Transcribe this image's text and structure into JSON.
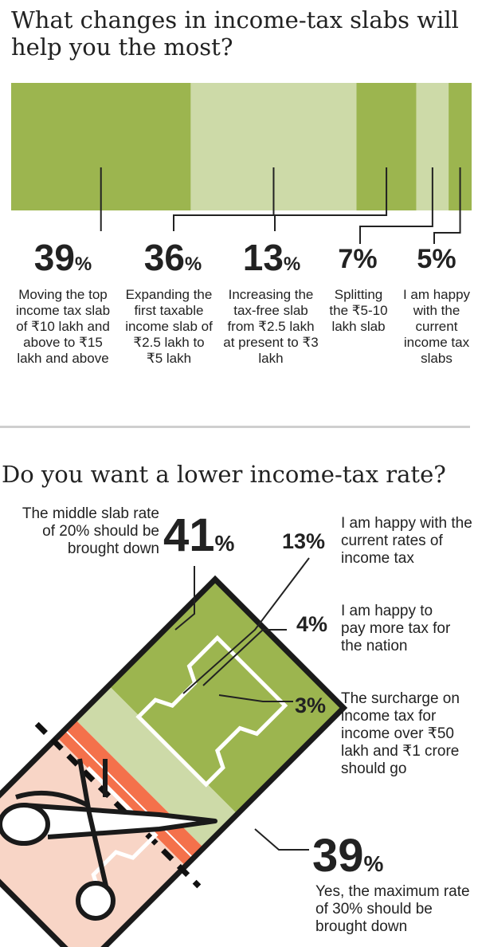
{
  "chart_data": [
    {
      "type": "bar",
      "title": "What changes in income-tax slabs will help you the most?",
      "categories": [
        "Moving the top income tax slab of ₹10 lakh and above to ₹15 lakh and above",
        "Expanding the first taxable income slab of ₹2.5 lakh to ₹5 lakh",
        "Increasing the tax-free slab from ₹2.5 lakh at present to ₹3 lakh",
        "Splitting the ₹5-10 lakh slab",
        "I am happy with the current income tax slabs"
      ],
      "values": [
        39,
        36,
        13,
        7,
        5
      ],
      "labels": [
        "39",
        "36",
        "13",
        "7",
        "5"
      ],
      "colors": [
        "#9cb54f",
        "#cddaa8",
        "#9cb54f",
        "#cddaa8",
        "#9cb54f"
      ]
    },
    {
      "type": "pie",
      "title": "Do you want a lower income-tax rate?",
      "categories": [
        "The middle slab rate of 20% should be brought down",
        "I am happy with the current rates of income tax",
        "I am happy to pay more tax for the nation",
        "The surcharge on income tax for income over ₹50 lakh and ₹1 crore should go",
        "Yes, the maximum rate of 30% should be brought down"
      ],
      "values": [
        41,
        13,
        4,
        3,
        39
      ],
      "labels": [
        "41",
        "13%",
        "4%",
        "3%",
        "39"
      ],
      "colors": [
        "#9cb54f",
        "#cddaa8",
        "#f4714b",
        "#f4714b",
        "#f8d5c6"
      ]
    }
  ],
  "percent_symbol": "%"
}
